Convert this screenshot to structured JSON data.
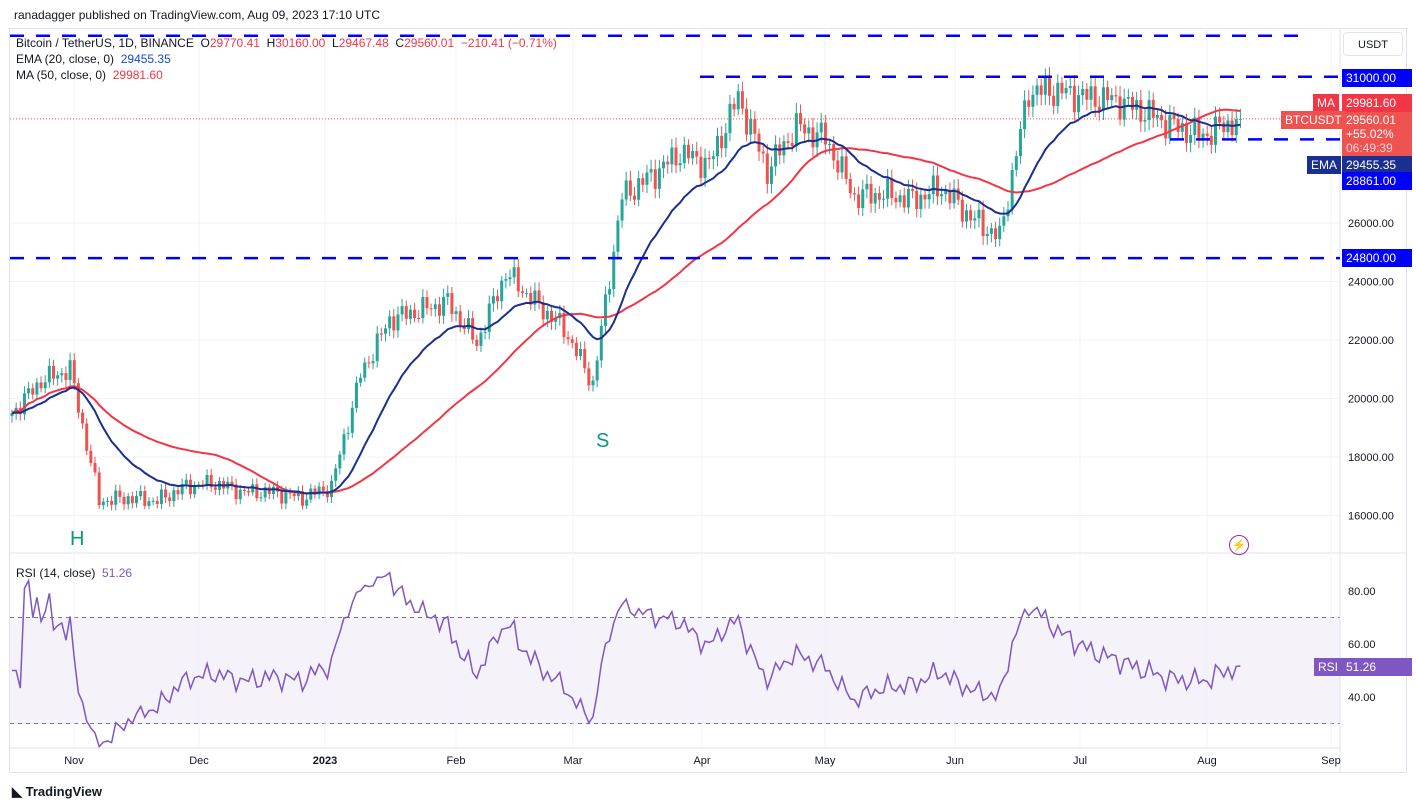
{
  "header": {
    "published": "ranadagger published on TradingView.com, Aug 09, 2023 17:10 UTC"
  },
  "legend": {
    "symbol": "Bitcoin / TetherUS, 1D, BINANCE",
    "o_label": "O",
    "open": "29770.41",
    "h_label": "H",
    "high": "30160.00",
    "l_label": "L",
    "low": "29467.48",
    "c_label": "C",
    "close": "29560.01",
    "change": "−210.41 (−0.71%)",
    "ema_label": "EMA (20, close, 0)",
    "ema_value": "29455.35",
    "ma_label": "MA (50, close, 0)",
    "ma_value": "29981.60",
    "rsi_label": "RSI (14, close)",
    "rsi_value": "51.26"
  },
  "price_axis": {
    "currency": "USDT",
    "ticks": [
      "16000.00",
      "18000.00",
      "20000.00",
      "22000.00",
      "24000.00",
      "26000.00"
    ],
    "level_31000": "31000.00",
    "level_24800": "24800.00",
    "level_28861": "28861.00",
    "ma_tag": "MA",
    "ma_price": "29981.60",
    "symbol_tag": "BTCUSDT",
    "last_price": "29560.01",
    "pct": "+55.02%",
    "countdown": "06:49:39",
    "ema_tag": "EMA",
    "ema_price": "29455.35"
  },
  "rsi_axis": {
    "ticks": [
      "80.00",
      "60.00",
      "40.00"
    ],
    "tag": "RSI",
    "value": "51.26"
  },
  "time_axis": [
    "Nov",
    "Dec",
    "2023",
    "Feb",
    "Mar",
    "Apr",
    "May",
    "Jun",
    "Jul",
    "Aug",
    "Sep"
  ],
  "annotations": {
    "head_left": "H",
    "shoulder": "S"
  },
  "footer": {
    "brand": "TradingView"
  },
  "colors": {
    "up": "#26a69a",
    "down": "#ef5350",
    "ema": "#1a2f8f",
    "ma": "#f23645",
    "rsi": "#7e57c2",
    "level": "#0000ff"
  },
  "chart_data": {
    "type": "candlestick",
    "title": "Bitcoin / TetherUS, 1D, BINANCE",
    "ylim": [
      15000,
      33000
    ],
    "levels": [
      32400,
      31000,
      28861,
      24800
    ],
    "weekly_closes": {
      "dates": [
        "2022-10-17",
        "2022-10-24",
        "2022-10-31",
        "2022-11-07",
        "2022-11-14",
        "2022-11-21",
        "2022-11-28",
        "2022-12-05",
        "2022-12-12",
        "2022-12-19",
        "2022-12-26",
        "2023-01-02",
        "2023-01-09",
        "2023-01-16",
        "2023-01-23",
        "2023-01-30",
        "2023-02-06",
        "2023-02-13",
        "2023-02-20",
        "2023-02-27",
        "2023-03-06",
        "2023-03-13",
        "2023-03-20",
        "2023-03-27",
        "2023-04-03",
        "2023-04-10",
        "2023-04-17",
        "2023-04-24",
        "2023-05-01",
        "2023-05-08",
        "2023-05-15",
        "2023-05-22",
        "2023-05-29",
        "2023-06-05",
        "2023-06-12",
        "2023-06-19",
        "2023-06-26",
        "2023-07-03",
        "2023-07-10",
        "2023-07-17",
        "2023-07-24",
        "2023-07-31",
        "2023-08-09"
      ],
      "values": [
        19500,
        20600,
        21000,
        16500,
        16600,
        16500,
        17000,
        17100,
        16800,
        16800,
        16600,
        17000,
        20800,
        22700,
        23000,
        23300,
        21900,
        24300,
        23300,
        22400,
        20500,
        26900,
        27600,
        28400,
        28000,
        30300,
        27800,
        29300,
        28900,
        26900,
        27000,
        26800,
        27200,
        26200,
        25500,
        30500,
        30500,
        30300,
        30200,
        29800,
        29300,
        29000,
        29560
      ]
    },
    "indicators": {
      "ema_period": 20,
      "ma_period": 50,
      "rsi_period": 14,
      "rsi_bands": [
        70,
        30
      ]
    }
  }
}
